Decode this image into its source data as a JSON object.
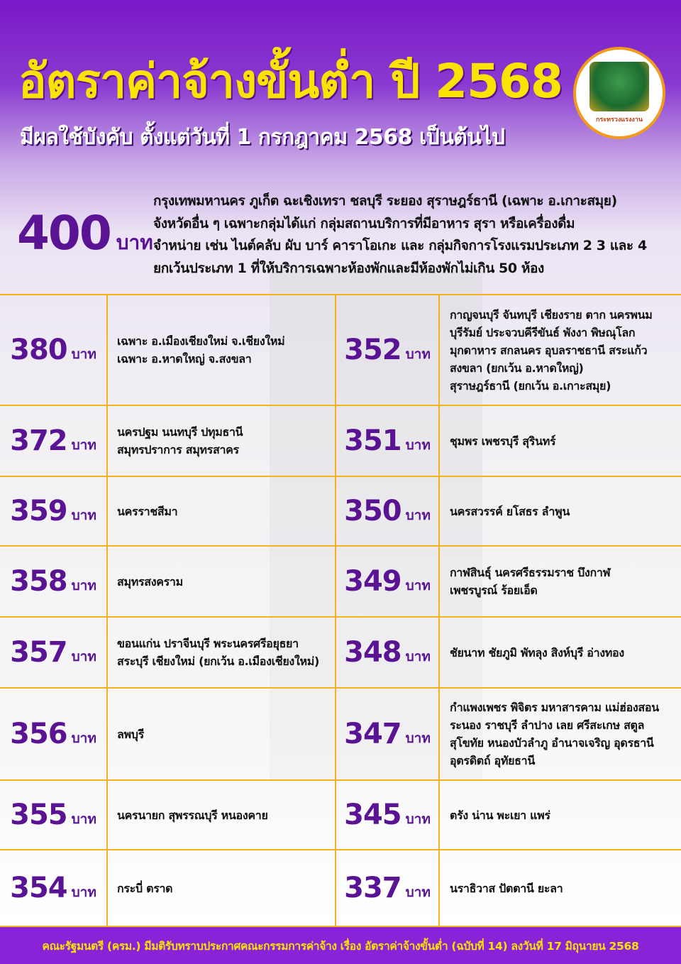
{
  "header": {
    "title": "อัตราค่าจ้างขั้นต่ำ ปี 2568",
    "subtitle": "มีผลใช้บังคับ ตั้งแต่วันที่ 1 กรกฎาคม 2568 เป็นต้นไป",
    "logo_text": "กระทรวงแรงงาน"
  },
  "unit": "บาท",
  "top_rate": {
    "value": "400",
    "unit": "บาท",
    "lines": [
      "กรุงเทพมหานคร ภูเก็ต ฉะเชิงเทรา ชลบุรี ระยอง สุราษฎร์ธานี (เฉพาะ อ.เกาะสมุย)",
      "จังหวัดอื่น ๆ เฉพาะกลุ่มได้แก่ กลุ่มสถานบริการที่มีอาหาร สุรา หรือเครื่องดื่ม",
      "จำหน่าย เช่น ไนต์คลับ ผับ บาร์ คาราโอเกะ และ กลุ่มกิจการโรงแรมประเภท 2 3 และ 4",
      "ยกเว้นประเภท 1 ที่ให้บริการเฉพาะห้องพักและมีห้องพักไม่เกิน 50 ห้อง"
    ]
  },
  "rows": [
    {
      "left": {
        "value": "380",
        "lines": [
          "เฉพาะ อ.เมืองเชียงใหม่ จ.เชียงใหม่",
          "เฉพาะ อ.หาดใหญ่ จ.สงขลา"
        ]
      },
      "right": {
        "value": "352",
        "lines": [
          "กาญจนบุรี จันทบุรี เชียงราย ตาก นครพนม",
          "บุรีรัมย์ ประจวบคีรีขันธ์ พังงา พิษณุโลก",
          "มุกดาหาร สกลนคร อุบลราชธานี สระแก้ว",
          "สงขลา (ยกเว้น อ.หาดใหญ่)",
          "สุราษฎร์ธานี (ยกเว้น อ.เกาะสมุย)"
        ]
      }
    },
    {
      "left": {
        "value": "372",
        "lines": [
          "นครปฐม นนทบุรี ปทุมธานี",
          "สมุทรปราการ สมุทรสาคร"
        ]
      },
      "right": {
        "value": "351",
        "lines": [
          "ชุมพร เพชรบุรี สุรินทร์"
        ]
      }
    },
    {
      "left": {
        "value": "359",
        "lines": [
          "นครราชสีมา"
        ]
      },
      "right": {
        "value": "350",
        "lines": [
          "นครสวรรค์ ยโสธร ลำพูน"
        ]
      }
    },
    {
      "left": {
        "value": "358",
        "lines": [
          "สมุทรสงคราม"
        ]
      },
      "right": {
        "value": "349",
        "lines": [
          "กาฬสินธุ์ นครศรีธรรมราช บึงกาฬ",
          "เพชรบูรณ์ ร้อยเอ็ด"
        ]
      }
    },
    {
      "left": {
        "value": "357",
        "lines": [
          "ขอนแก่น ปราจีนบุรี พระนครศรีอยุธยา",
          "สระบุรี เชียงใหม่ (ยกเว้น อ.เมืองเชียงใหม่)"
        ]
      },
      "right": {
        "value": "348",
        "lines": [
          "ชัยนาท ชัยภูมิ พัทลุง สิงห์บุรี อ่างทอง"
        ]
      }
    },
    {
      "left": {
        "value": "356",
        "lines": [
          "ลพบุรี"
        ]
      },
      "right": {
        "value": "347",
        "lines": [
          "กำแพงเพชร พิจิตร มหาสารคาม แม่ฮ่องสอน",
          "ระนอง ราชบุรี ลำปาง เลย ศรีสะเกษ สตูล",
          "สุโขทัย หนองบัวลำภู อำนาจเจริญ อุดรธานี",
          "อุตรดิตถ์ อุทัยธานี"
        ]
      }
    },
    {
      "left": {
        "value": "355",
        "lines": [
          "นครนายก สุพรรณบุรี หนองคาย"
        ]
      },
      "right": {
        "value": "345",
        "lines": [
          "ตรัง น่าน พะเยา แพร่"
        ]
      }
    },
    {
      "left": {
        "value": "354",
        "lines": [
          "กระบี่ ตราด"
        ]
      },
      "right": {
        "value": "337",
        "lines": [
          "นราธิวาส ปัตตานี ยะลา"
        ]
      }
    }
  ],
  "footer": "คณะรัฐมนตรี  (ครม.) มีมติรับทราบประกาศคณะกรรมการค่าจ้าง เรื่อง อัตราค่าจ้างขั้นต่ำ (ฉบับที่ 14) ลงวันที่ 17 มิถุนายน 2568",
  "colors": {
    "title": "#f8e400",
    "rate": "#5a1493",
    "grid": "#f5b31a",
    "footer_bg": "#8a22d8",
    "header_bg": "#7a18c8"
  }
}
